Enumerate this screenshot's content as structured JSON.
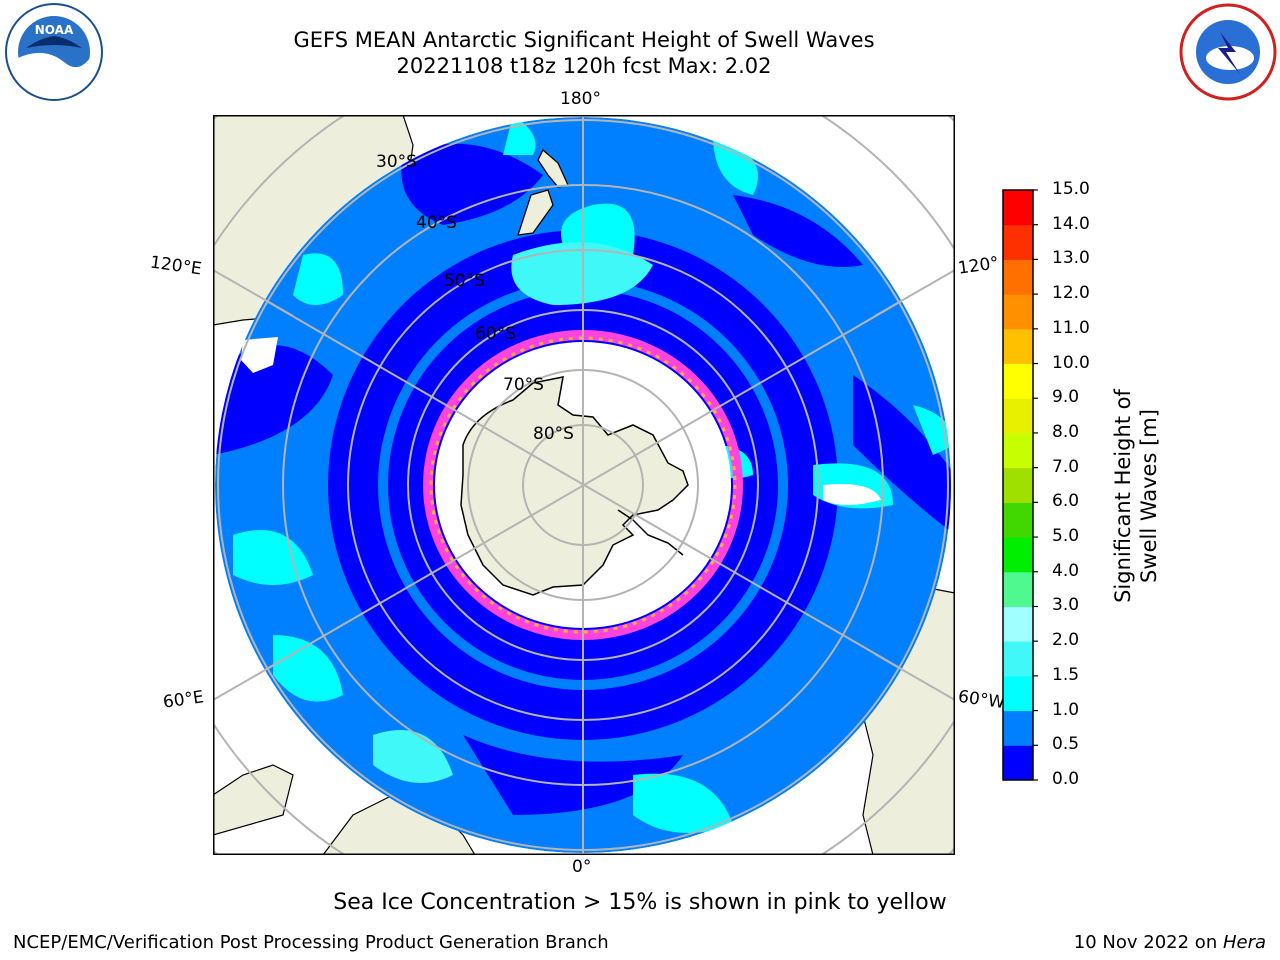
{
  "title_line1": "GEFS MEAN Antarctic Significant Height of Swell Waves",
  "title_line2": "20221108 t18z 120h fcst   Max: 2.02",
  "logos": {
    "left": "noaa-logo",
    "right": "national-weather-service-logo"
  },
  "map": {
    "projection": "south-polar-stereographic",
    "lon_labels": {
      "top": "180°",
      "bottom": "0°",
      "upper_left": "120°E",
      "lower_left": "60°E",
      "upper_right": "120°",
      "lower_right": "60°W"
    },
    "lat_labels": [
      "30°S",
      "40°S",
      "50°S",
      "60°S",
      "70°S",
      "80°S"
    ],
    "colors": {
      "ocean_deep": "#0000ff",
      "ocean_mid": "#0080ff",
      "ocean_light": "#00e0ff",
      "land": "#eeeedc",
      "ice": "#ffffff",
      "ice_edge": "#ff44dd",
      "grid": "#b4b4b4"
    }
  },
  "colorbar": {
    "title": "Significant Height of Swell Waves [m]",
    "ticks": [
      "0.0",
      "0.5",
      "1.0",
      "1.5",
      "2.0",
      "3.0",
      "4.0",
      "5.0",
      "6.0",
      "7.0",
      "8.0",
      "9.0",
      "10.0",
      "11.0",
      "12.0",
      "13.0",
      "14.0",
      "15.0"
    ],
    "colors": [
      "#0000ff",
      "#0080ff",
      "#00ffff",
      "#40f8f8",
      "#a0ffff",
      "#50f890",
      "#00ee00",
      "#40d800",
      "#a0e000",
      "#c8ff00",
      "#e8f000",
      "#ffff00",
      "#ffc000",
      "#ff9000",
      "#ff7000",
      "#ff3000",
      "#ff0000"
    ]
  },
  "subtitle": "Sea Ice Concentration > 15% is shown in pink to yellow",
  "footer": {
    "left": "NCEP/EMC/Verification Post Processing Product Generation Branch",
    "date": "10 Nov 2022 on ",
    "host": "Hera"
  }
}
